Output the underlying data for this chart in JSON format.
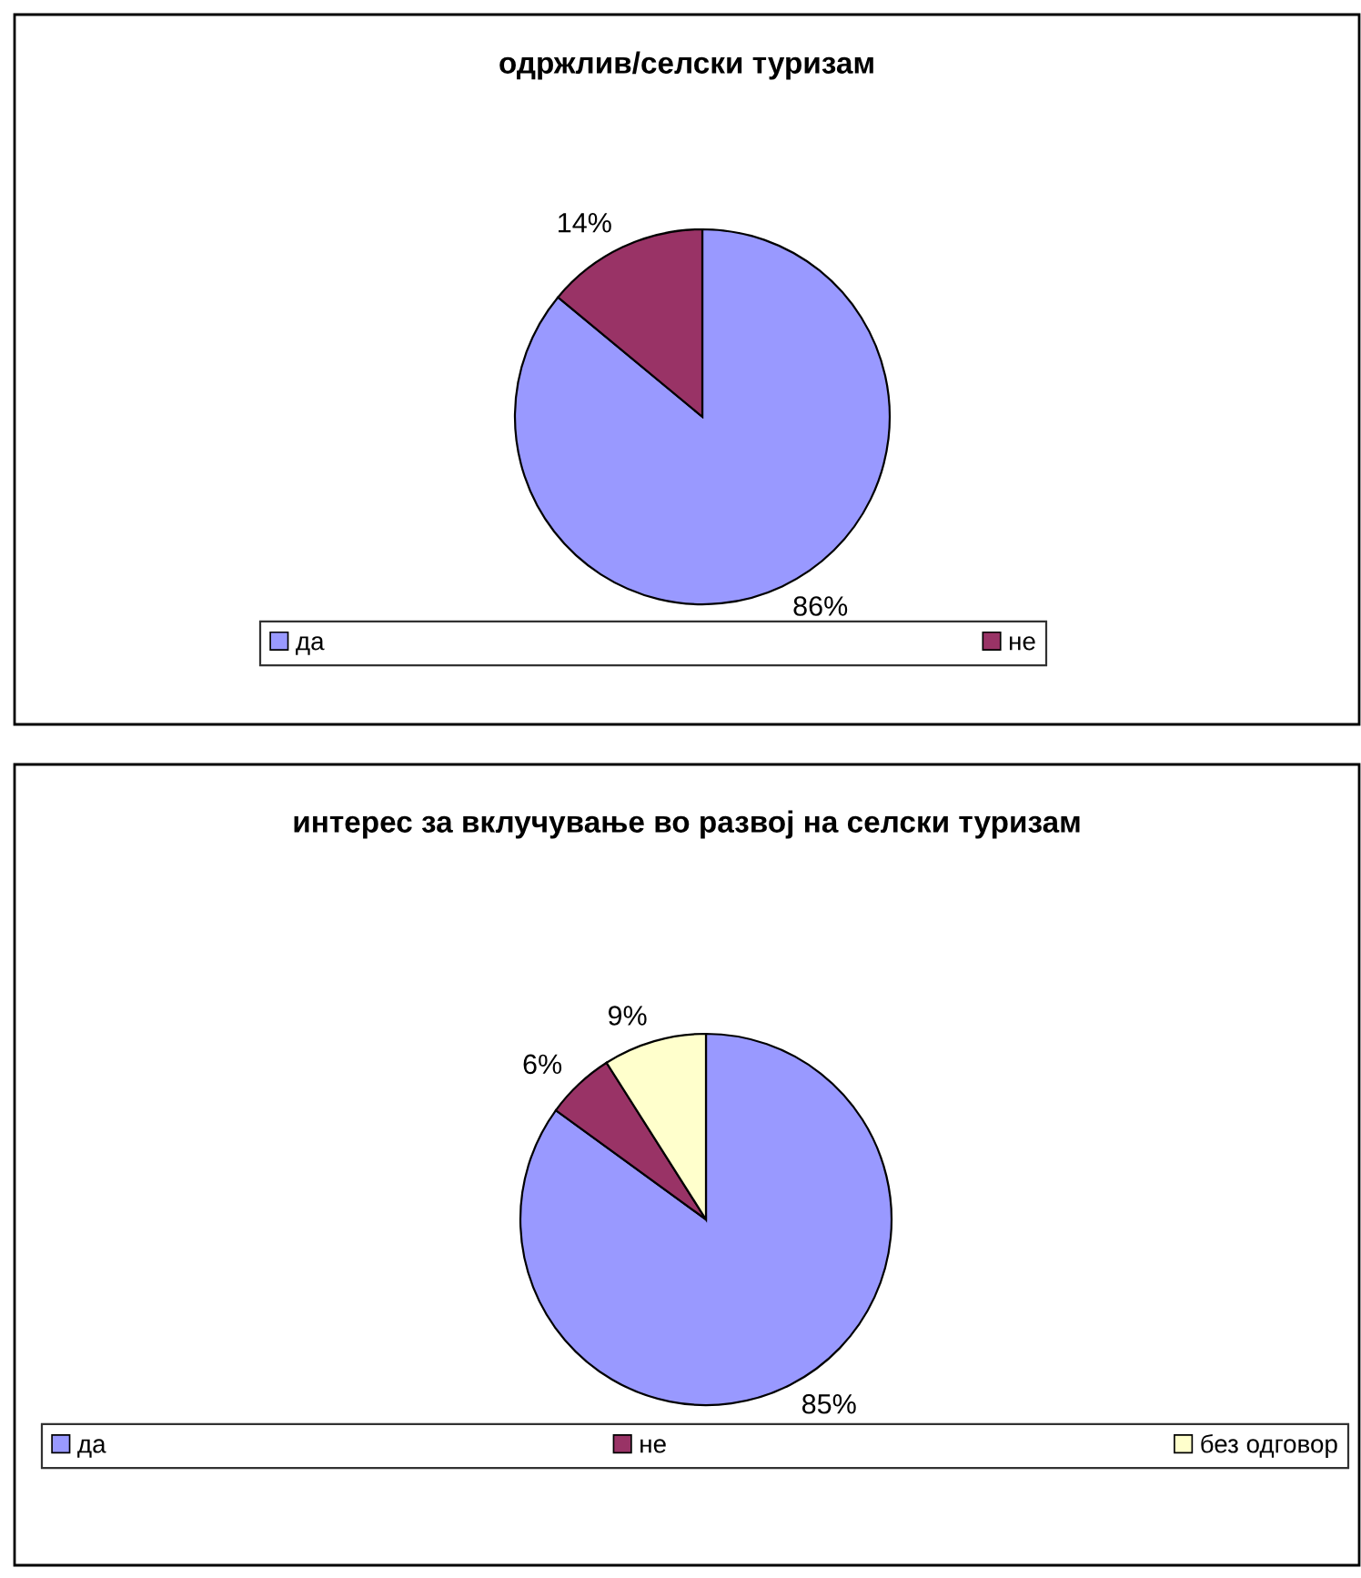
{
  "chart_data": [
    {
      "type": "pie",
      "title": "одржлив/селски туризам",
      "categories": [
        "да",
        "не"
      ],
      "values": [
        86,
        14
      ],
      "colors": [
        "#9999ff",
        "#993366"
      ],
      "value_labels": [
        "86%",
        "14%"
      ],
      "legend": "bottom"
    },
    {
      "type": "pie",
      "title": "интерес за вклучување во развој на селски туризам",
      "categories": [
        "да",
        "не",
        "без одговор"
      ],
      "values": [
        85,
        6,
        9
      ],
      "colors": [
        "#9999ff",
        "#993366",
        "#ffffcc"
      ],
      "value_labels": [
        "85%",
        "6%",
        "9%"
      ],
      "legend": "bottom"
    }
  ]
}
